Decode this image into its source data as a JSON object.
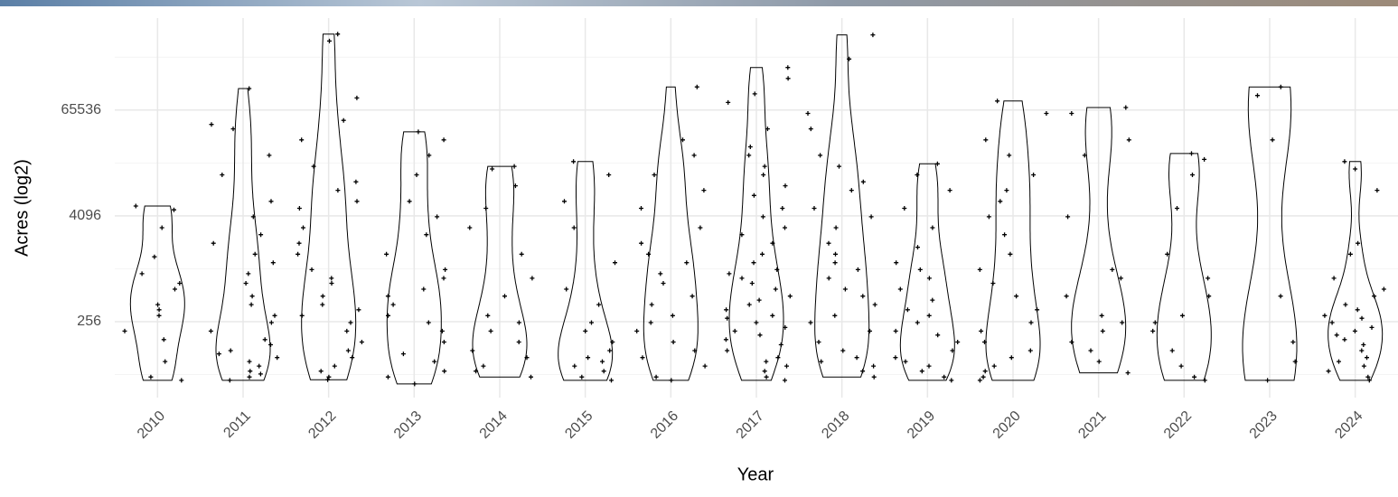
{
  "chart_data": {
    "type": "violin",
    "x_label": "Year",
    "y_label": "Acres (log2)",
    "y_scale": "log2",
    "grid": true,
    "categories": [
      "2010",
      "2011",
      "2012",
      "2013",
      "2014",
      "2015",
      "2016",
      "2017",
      "2018",
      "2019",
      "2020",
      "2021",
      "2022",
      "2023",
      "2024"
    ],
    "values": [
      [
        5300,
        4800,
        3000,
        1400,
        900,
        700,
        600,
        400,
        350,
        300,
        200,
        160,
        90,
        60,
        55
      ],
      [
        115000,
        45000,
        40000,
        20000,
        12000,
        6000,
        4000,
        2500,
        2000,
        1500,
        1200,
        900,
        700,
        500,
        400,
        300,
        250,
        200,
        160,
        140,
        120,
        110,
        100,
        90,
        80,
        70,
        65,
        60,
        55
      ],
      [
        480000,
        400000,
        90000,
        50000,
        30000,
        15000,
        10000,
        8000,
        6000,
        5000,
        3000,
        2000,
        1500,
        1000,
        800,
        700,
        500,
        400,
        350,
        300,
        250,
        200,
        150,
        120,
        100,
        80,
        70,
        60,
        56
      ],
      [
        37000,
        30000,
        20000,
        12000,
        6000,
        4000,
        2500,
        1500,
        1000,
        800,
        600,
        500,
        400,
        300,
        250,
        200,
        150,
        110,
        90,
        70,
        60,
        50
      ],
      [
        15000,
        14000,
        9000,
        5000,
        3000,
        1500,
        800,
        500,
        300,
        250,
        200,
        150,
        120,
        100,
        80,
        70,
        60
      ],
      [
        17000,
        12000,
        6000,
        3000,
        1200,
        600,
        400,
        250,
        200,
        150,
        120,
        100,
        90,
        80,
        70,
        60,
        55
      ],
      [
        120000,
        30000,
        20000,
        12000,
        8000,
        5000,
        3000,
        2000,
        1500,
        1200,
        900,
        700,
        500,
        400,
        300,
        250,
        200,
        150,
        120,
        100,
        80,
        60,
        55
      ],
      [
        200000,
        150000,
        100000,
        80000,
        40000,
        25000,
        20000,
        15000,
        12000,
        9000,
        7000,
        5000,
        4000,
        3000,
        2500,
        2000,
        1500,
        1200,
        1000,
        900,
        800,
        700,
        600,
        500,
        450,
        400,
        350,
        300,
        280,
        250,
        220,
        200,
        180,
        160,
        140,
        120,
        100,
        90,
        80,
        70,
        60,
        55
      ],
      [
        470000,
        250000,
        60000,
        40000,
        20000,
        15000,
        10000,
        8000,
        5000,
        4000,
        3000,
        2000,
        1500,
        1200,
        1000,
        800,
        600,
        500,
        400,
        300,
        250,
        200,
        150,
        120,
        100,
        90,
        80,
        70,
        60
      ],
      [
        16000,
        12000,
        8000,
        5000,
        3000,
        1800,
        1200,
        1000,
        800,
        600,
        450,
        350,
        300,
        250,
        200,
        180,
        150,
        120,
        100,
        90,
        80,
        70,
        60,
        55
      ],
      [
        83000,
        60000,
        30000,
        20000,
        12000,
        8000,
        6000,
        4000,
        2500,
        1500,
        1000,
        700,
        500,
        350,
        250,
        200,
        150,
        120,
        100,
        80,
        70,
        60,
        55
      ],
      [
        70000,
        60000,
        30000,
        20000,
        4000,
        1000,
        800,
        500,
        300,
        250,
        200,
        150,
        120,
        90,
        67
      ],
      [
        21000,
        18000,
        12000,
        5000,
        1500,
        800,
        500,
        300,
        250,
        200,
        120,
        80,
        60,
        55
      ],
      [
        120000,
        96000,
        30000,
        500,
        150,
        90,
        55
      ],
      [
        17000,
        14000,
        8000,
        2000,
        1500,
        800,
        600,
        500,
        400,
        350,
        300,
        280,
        250,
        220,
        200,
        180,
        160,
        140,
        120,
        100,
        90,
        80,
        70,
        60,
        55
      ]
    ],
    "ylim": [
      35,
      730000
    ],
    "yticks": [
      256,
      4096,
      65536
    ]
  }
}
